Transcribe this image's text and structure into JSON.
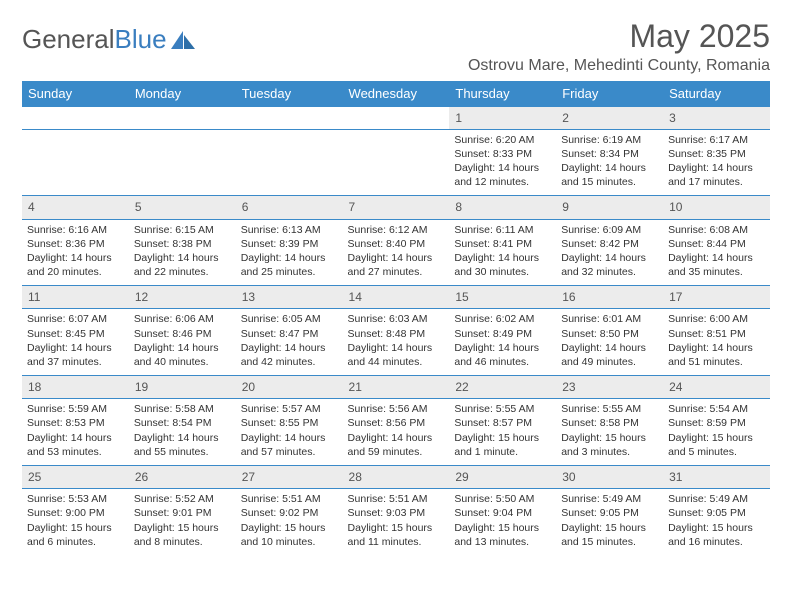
{
  "brand": {
    "part1": "General",
    "part2": "Blue"
  },
  "title": "May 2025",
  "location": "Ostrovu Mare, Mehedinti County, Romania",
  "colors": {
    "header_bg": "#3a8ac9",
    "header_text": "#ffffff",
    "daynum_bg": "#ececec",
    "border": "#3a8ac9",
    "text": "#333333",
    "title_text": "#555555"
  },
  "weekdays": [
    "Sunday",
    "Monday",
    "Tuesday",
    "Wednesday",
    "Thursday",
    "Friday",
    "Saturday"
  ],
  "weeks": [
    [
      null,
      null,
      null,
      null,
      {
        "n": "1",
        "sr": "6:20 AM",
        "ss": "8:33 PM",
        "dl": "14 hours and 12 minutes."
      },
      {
        "n": "2",
        "sr": "6:19 AM",
        "ss": "8:34 PM",
        "dl": "14 hours and 15 minutes."
      },
      {
        "n": "3",
        "sr": "6:17 AM",
        "ss": "8:35 PM",
        "dl": "14 hours and 17 minutes."
      }
    ],
    [
      {
        "n": "4",
        "sr": "6:16 AM",
        "ss": "8:36 PM",
        "dl": "14 hours and 20 minutes."
      },
      {
        "n": "5",
        "sr": "6:15 AM",
        "ss": "8:38 PM",
        "dl": "14 hours and 22 minutes."
      },
      {
        "n": "6",
        "sr": "6:13 AM",
        "ss": "8:39 PM",
        "dl": "14 hours and 25 minutes."
      },
      {
        "n": "7",
        "sr": "6:12 AM",
        "ss": "8:40 PM",
        "dl": "14 hours and 27 minutes."
      },
      {
        "n": "8",
        "sr": "6:11 AM",
        "ss": "8:41 PM",
        "dl": "14 hours and 30 minutes."
      },
      {
        "n": "9",
        "sr": "6:09 AM",
        "ss": "8:42 PM",
        "dl": "14 hours and 32 minutes."
      },
      {
        "n": "10",
        "sr": "6:08 AM",
        "ss": "8:44 PM",
        "dl": "14 hours and 35 minutes."
      }
    ],
    [
      {
        "n": "11",
        "sr": "6:07 AM",
        "ss": "8:45 PM",
        "dl": "14 hours and 37 minutes."
      },
      {
        "n": "12",
        "sr": "6:06 AM",
        "ss": "8:46 PM",
        "dl": "14 hours and 40 minutes."
      },
      {
        "n": "13",
        "sr": "6:05 AM",
        "ss": "8:47 PM",
        "dl": "14 hours and 42 minutes."
      },
      {
        "n": "14",
        "sr": "6:03 AM",
        "ss": "8:48 PM",
        "dl": "14 hours and 44 minutes."
      },
      {
        "n": "15",
        "sr": "6:02 AM",
        "ss": "8:49 PM",
        "dl": "14 hours and 46 minutes."
      },
      {
        "n": "16",
        "sr": "6:01 AM",
        "ss": "8:50 PM",
        "dl": "14 hours and 49 minutes."
      },
      {
        "n": "17",
        "sr": "6:00 AM",
        "ss": "8:51 PM",
        "dl": "14 hours and 51 minutes."
      }
    ],
    [
      {
        "n": "18",
        "sr": "5:59 AM",
        "ss": "8:53 PM",
        "dl": "14 hours and 53 minutes."
      },
      {
        "n": "19",
        "sr": "5:58 AM",
        "ss": "8:54 PM",
        "dl": "14 hours and 55 minutes."
      },
      {
        "n": "20",
        "sr": "5:57 AM",
        "ss": "8:55 PM",
        "dl": "14 hours and 57 minutes."
      },
      {
        "n": "21",
        "sr": "5:56 AM",
        "ss": "8:56 PM",
        "dl": "14 hours and 59 minutes."
      },
      {
        "n": "22",
        "sr": "5:55 AM",
        "ss": "8:57 PM",
        "dl": "15 hours and 1 minute."
      },
      {
        "n": "23",
        "sr": "5:55 AM",
        "ss": "8:58 PM",
        "dl": "15 hours and 3 minutes."
      },
      {
        "n": "24",
        "sr": "5:54 AM",
        "ss": "8:59 PM",
        "dl": "15 hours and 5 minutes."
      }
    ],
    [
      {
        "n": "25",
        "sr": "5:53 AM",
        "ss": "9:00 PM",
        "dl": "15 hours and 6 minutes."
      },
      {
        "n": "26",
        "sr": "5:52 AM",
        "ss": "9:01 PM",
        "dl": "15 hours and 8 minutes."
      },
      {
        "n": "27",
        "sr": "5:51 AM",
        "ss": "9:02 PM",
        "dl": "15 hours and 10 minutes."
      },
      {
        "n": "28",
        "sr": "5:51 AM",
        "ss": "9:03 PM",
        "dl": "15 hours and 11 minutes."
      },
      {
        "n": "29",
        "sr": "5:50 AM",
        "ss": "9:04 PM",
        "dl": "15 hours and 13 minutes."
      },
      {
        "n": "30",
        "sr": "5:49 AM",
        "ss": "9:05 PM",
        "dl": "15 hours and 15 minutes."
      },
      {
        "n": "31",
        "sr": "5:49 AM",
        "ss": "9:05 PM",
        "dl": "15 hours and 16 minutes."
      }
    ]
  ],
  "labels": {
    "sunrise": "Sunrise:",
    "sunset": "Sunset:",
    "daylight": "Daylight:"
  }
}
